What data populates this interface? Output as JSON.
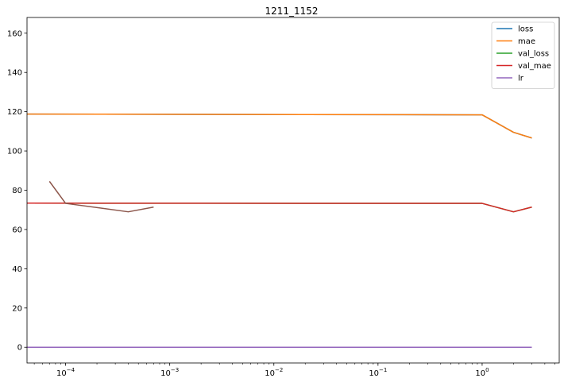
{
  "chart_data": {
    "type": "line",
    "title": "1211_1152",
    "xlabel": "",
    "ylabel": "",
    "xscale": "log",
    "xlim": [
      4.26e-05,
      5.5
    ],
    "ylim": [
      -8,
      168
    ],
    "grid": false,
    "legend_position": "top-right",
    "yticks": [
      0,
      20,
      40,
      60,
      80,
      100,
      120,
      140,
      160
    ],
    "xticks": [
      0.0001,
      0.001,
      0.01,
      0.1,
      1
    ],
    "xtick_bases": [
      "10",
      "10",
      "10",
      "10",
      "10"
    ],
    "xtick_exps": [
      "−4",
      "−3",
      "−2",
      "−1",
      "0"
    ],
    "series": [
      {
        "name": "loss",
        "color": "#1f77b4",
        "x": [
          4.26e-05,
          1,
          2,
          3
        ],
        "y": [
          118.8,
          118.4,
          109.5,
          106.6
        ]
      },
      {
        "name": "mae",
        "color": "#ff7f0e",
        "x": [
          4.26e-05,
          1,
          2,
          3
        ],
        "y": [
          118.8,
          118.4,
          109.5,
          106.6
        ]
      },
      {
        "name": "val_loss",
        "color": "#2ca02c",
        "x": [
          4.26e-05,
          1,
          2,
          3
        ],
        "y": [
          73.4,
          73.3,
          69.0,
          71.4
        ]
      },
      {
        "name": "val_mae",
        "color": "#d62728",
        "x": [
          4.26e-05,
          1,
          2,
          3
        ],
        "y": [
          73.4,
          73.3,
          69.0,
          71.4
        ]
      },
      {
        "name": "lr",
        "color": "#9467bd",
        "x": [
          4.26e-05,
          1,
          2,
          3
        ],
        "y": [
          0.001,
          0.001,
          0.001,
          0.001
        ]
      },
      {
        "name": "",
        "color": "#8c564b",
        "x": [
          7e-05,
          0.0001,
          0.0004,
          0.0007
        ],
        "y": [
          84.5,
          73.3,
          69.0,
          71.4
        ]
      }
    ]
  }
}
